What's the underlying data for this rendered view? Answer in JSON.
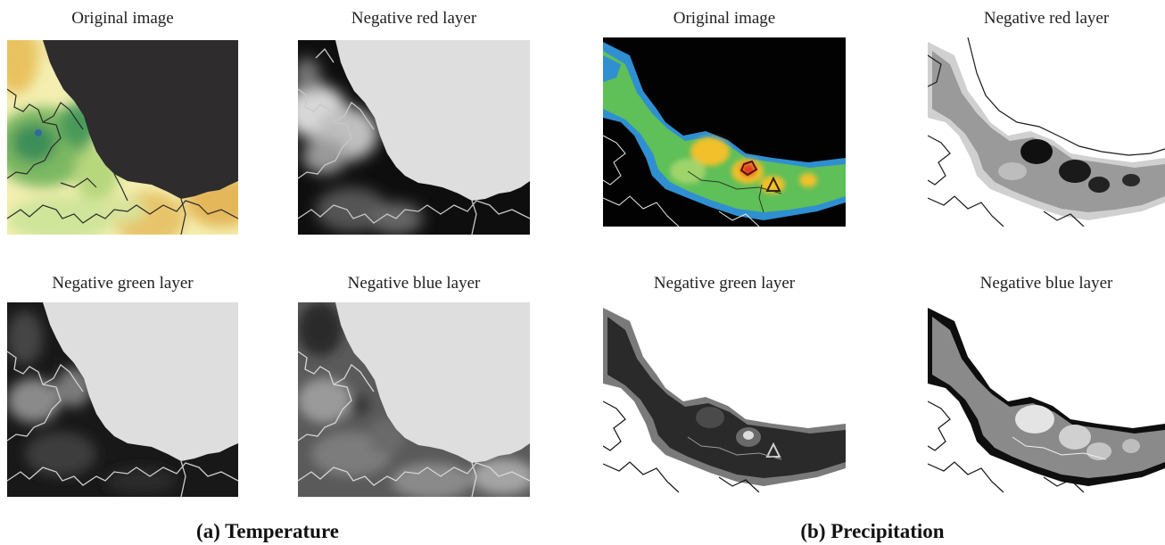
{
  "temperature": {
    "panels": [
      {
        "label": "Original image"
      },
      {
        "label": "Negative red layer"
      },
      {
        "label": "Negative green layer"
      },
      {
        "label": "Negative blue layer"
      }
    ],
    "caption": "(a) Temperature"
  },
  "precipitation": {
    "panels": [
      {
        "label": "Original image"
      },
      {
        "label": "Negative red layer"
      },
      {
        "label": "Negative green layer"
      },
      {
        "label": "Negative blue layer"
      }
    ],
    "caption": "(b) Precipitation"
  }
}
